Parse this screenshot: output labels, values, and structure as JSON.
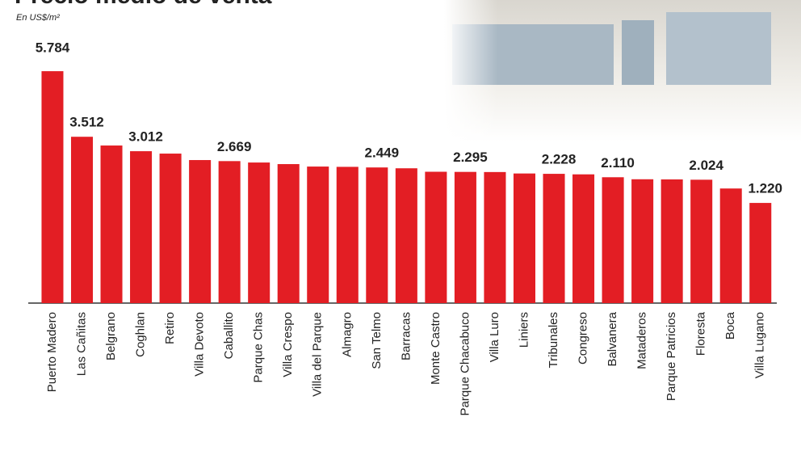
{
  "chart_data": {
    "type": "bar",
    "title": "Precio medio de venta",
    "subtitle": "En US$/m²",
    "categories": [
      "Puerto Madero",
      "Las Cañitas",
      "Belgrano",
      "Coghlan",
      "Retiro",
      "Villa Devoto",
      "Caballito",
      "Parque Chas",
      "Villa Crespo",
      "Villa del Parque",
      "Almagro",
      "San Telmo",
      "Barracas",
      "Monte Castro",
      "Parque Chacabuco",
      "Villa Luro",
      "Liniers",
      "Tribunales",
      "Congreso",
      "Balvanera",
      "Mataderos",
      "Parque Patricios",
      "Floresta",
      "Boca",
      "Villa Lugano"
    ],
    "values": [
      5784,
      3512,
      3209,
      3012,
      2929,
      2705,
      2669,
      2620,
      2565,
      2480,
      2470,
      2449,
      2420,
      2300,
      2295,
      2290,
      2240,
      2228,
      2210,
      2110,
      2040,
      2035,
      2024,
      1720,
      1220
    ],
    "value_labels": [
      "5.784",
      "3.512",
      null,
      "3.012",
      null,
      null,
      "2.669",
      null,
      null,
      null,
      null,
      "2.449",
      null,
      null,
      "2.295",
      null,
      null,
      "2.228",
      null,
      "2.110",
      null,
      null,
      "2.024",
      null,
      "1.220"
    ],
    "color": "#e31e24",
    "ylim": [
      -2250,
      7130
    ]
  }
}
